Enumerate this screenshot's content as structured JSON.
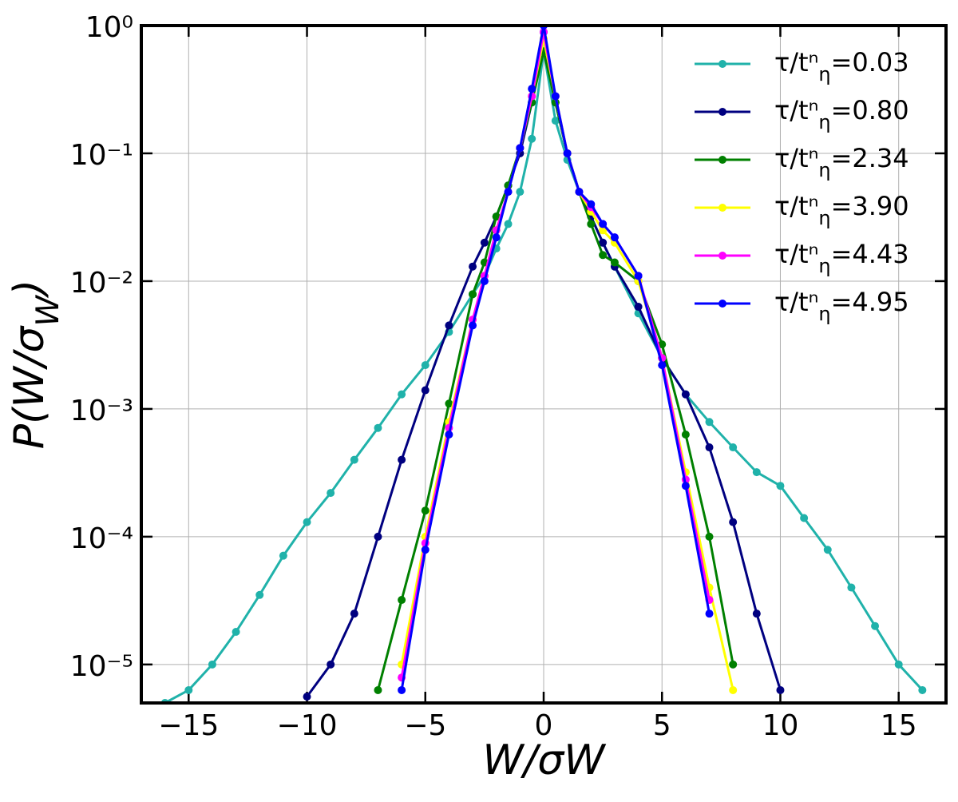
{
  "chart_data": {
    "type": "line",
    "x_label": "W/σW",
    "y_label": "P(W/σW)",
    "log_y": true,
    "grid": true,
    "legend": "upper right",
    "x": [
      -16,
      -15,
      -14,
      -13,
      -12,
      -11,
      -10,
      -9,
      -8,
      -7,
      -6,
      -5,
      -4,
      -3,
      -2.5,
      -2,
      -1.5,
      -1,
      -0.5,
      0,
      0.5,
      1,
      1.5,
      2,
      2.5,
      3,
      4,
      5,
      6,
      7,
      8,
      9,
      10,
      11,
      12,
      13,
      14,
      15,
      16
    ],
    "xlim": [
      -17,
      17
    ],
    "xticks": [
      {
        "value": -15,
        "label": "−15"
      },
      {
        "value": -10,
        "label": "−10"
      },
      {
        "value": -5,
        "label": "−5"
      },
      0,
      5,
      10,
      15
    ],
    "ylim": [
      5e-06,
      1
    ],
    "yticks": [
      {
        "value": 1e-05,
        "label": "10⁻⁵"
      },
      {
        "value": 0.0001,
        "label": "10⁻⁴"
      },
      {
        "value": 0.001,
        "label": "10⁻³"
      },
      {
        "value": 0.01,
        "label": "10⁻²"
      },
      {
        "value": 0.1,
        "label": "10⁻¹"
      },
      {
        "value": 1,
        "label": "10⁰"
      }
    ],
    "series": [
      {
        "name": "τ/tⁿη=0.03",
        "color": "#20b2aa",
        "values": [
          5e-06,
          6.3e-06,
          1e-05,
          1.8e-05,
          3.5e-05,
          7.1e-05,
          0.00013,
          0.00022,
          0.0004,
          0.00071,
          0.0013,
          0.0022,
          0.004,
          0.0079,
          0.011,
          0.018,
          0.028,
          0.05,
          0.13,
          0.63,
          0.18,
          0.089,
          0.05,
          0.032,
          0.02,
          0.013,
          0.0056,
          0.0025,
          0.0013,
          0.00079,
          0.0005,
          0.00032,
          0.00025,
          0.00014,
          7.9e-05,
          4e-05,
          2e-05,
          1e-05,
          6.3e-06
        ]
      },
      {
        "name": "τ/tⁿη=0.80",
        "color": "#000080",
        "values": [
          null,
          null,
          null,
          null,
          null,
          null,
          5.6e-06,
          1e-05,
          2.5e-05,
          0.0001,
          0.0004,
          0.0014,
          0.0045,
          0.013,
          0.02,
          0.032,
          0.056,
          0.1,
          0.25,
          0.89,
          0.25,
          0.1,
          0.05,
          0.032,
          0.02,
          0.013,
          0.0063,
          0.0025,
          0.0013,
          0.0005,
          0.00013,
          2.5e-05,
          6.3e-06,
          null,
          null,
          null,
          null,
          null,
          null
        ]
      },
      {
        "name": "τ/tⁿη=2.34",
        "color": "#008000",
        "values": [
          null,
          null,
          null,
          null,
          null,
          null,
          null,
          null,
          null,
          6.3e-06,
          3.2e-05,
          0.00016,
          0.0011,
          0.0079,
          0.014,
          0.032,
          0.056,
          0.11,
          0.25,
          0.63,
          0.25,
          0.1,
          0.05,
          0.028,
          0.016,
          0.014,
          0.01,
          0.0032,
          0.00063,
          0.0001,
          1e-05,
          null,
          null,
          null,
          null,
          null,
          null,
          null,
          null
        ]
      },
      {
        "name": "τ/tⁿη=3.90",
        "color": "#ffff00",
        "values": [
          null,
          null,
          null,
          null,
          null,
          null,
          null,
          null,
          null,
          null,
          1e-05,
          0.0001,
          0.00079,
          0.005,
          0.011,
          0.025,
          0.05,
          0.11,
          0.28,
          0.79,
          0.28,
          0.1,
          0.05,
          0.035,
          0.025,
          0.02,
          0.01,
          0.0025,
          0.00032,
          4e-05,
          6.3e-06,
          null,
          null,
          null,
          null,
          null,
          null,
          null,
          null
        ]
      },
      {
        "name": "τ/tⁿη=4.43",
        "color": "#ff00ff",
        "values": [
          null,
          null,
          null,
          null,
          null,
          null,
          null,
          null,
          null,
          null,
          7.9e-06,
          8.9e-05,
          0.00071,
          0.005,
          0.011,
          0.025,
          0.05,
          0.11,
          0.28,
          0.89,
          0.28,
          0.1,
          0.05,
          0.038,
          0.028,
          0.022,
          0.011,
          0.0025,
          0.00028,
          3.2e-05,
          null,
          null,
          null,
          null,
          null,
          null,
          null,
          null,
          null
        ]
      },
      {
        "name": "τ/tⁿη=4.95",
        "color": "#0000ff",
        "values": [
          null,
          null,
          null,
          null,
          null,
          null,
          null,
          null,
          null,
          null,
          6.3e-06,
          7.9e-05,
          0.00063,
          0.0045,
          0.01,
          0.022,
          0.05,
          0.11,
          0.32,
          1,
          0.28,
          0.1,
          0.05,
          0.04,
          0.028,
          0.022,
          0.011,
          0.0022,
          0.00025,
          2.5e-05,
          null,
          null,
          null,
          null,
          null,
          null,
          null,
          null,
          null
        ]
      }
    ]
  }
}
